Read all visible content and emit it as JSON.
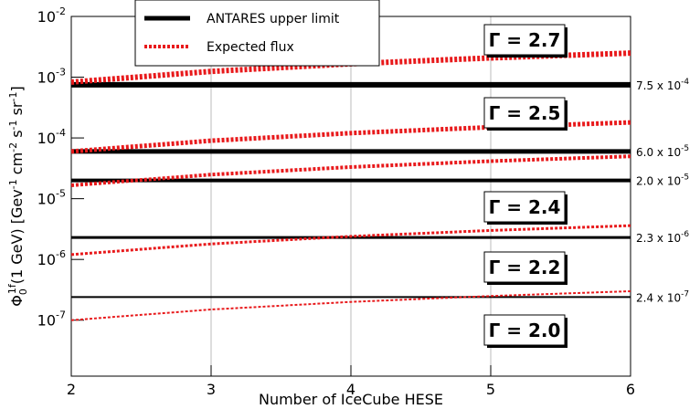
{
  "chart_data": {
    "type": "line",
    "x_label": "Number of IceCube HESE",
    "y_label": [
      "Φ",
      "0",
      "1f",
      "(1 GeV) [Gev",
      "-1",
      " cm",
      "-2",
      " s",
      "-1",
      " sr",
      "-1",
      "]"
    ],
    "xlim": [
      2,
      6
    ],
    "xticks": [
      2,
      3,
      4,
      5,
      6
    ],
    "ylim": [
      1.2e-08,
      0.01
    ],
    "log_y": true,
    "yticks": [
      {
        "value": 1e-07,
        "label": "10",
        "exp": "-7"
      },
      {
        "value": 1e-06,
        "label": "10",
        "exp": "-6"
      },
      {
        "value": 1e-05,
        "label": "10",
        "exp": "-5"
      },
      {
        "value": 0.0001,
        "label": "10",
        "exp": "-4"
      },
      {
        "value": 0.001,
        "label": "10",
        "exp": "-3"
      },
      {
        "value": 0.01,
        "label": "10",
        "exp": "-2"
      }
    ],
    "grid": true,
    "legend": "top-left",
    "x": [
      2,
      3,
      4,
      5,
      6
    ],
    "series": [
      {
        "name": "ANTARES upper limit",
        "color": "#000000",
        "values": [
          0.00075,
          6e-05,
          2e-05,
          2.3e-06,
          2.4e-07
        ],
        "value_labels": [
          {
            "label": "7.5 x 10",
            "exp": "-4"
          },
          {
            "label": "6.0 x 10",
            "exp": "-5"
          },
          {
            "label": "2.0 x 10",
            "exp": "-5"
          },
          {
            "label": "2.3 x 10",
            "exp": "-6"
          },
          {
            "label": "2.4 x 10",
            "exp": "-7"
          }
        ]
      },
      {
        "name": "Expected flux",
        "color": "#e8191b",
        "lines": [
          {
            "label": "Γ = 2.7",
            "values": [
              0.00083,
              0.001245,
              0.00166,
              0.002075,
              0.00249
            ]
          },
          {
            "label": "Γ = 2.5",
            "values": [
              6e-05,
              9e-05,
              0.00012,
              0.00015,
              0.00018
            ]
          },
          {
            "label": "Γ = 2.4",
            "values": [
              1.66e-05,
              2.49e-05,
              3.32e-05,
              4.15e-05,
              4.98e-05
            ]
          },
          {
            "label": "Γ = 2.2",
            "values": [
              1.2e-06,
              1.8e-06,
              2.4e-06,
              3e-06,
              3.6e-06
            ]
          },
          {
            "label": "Γ = 2.0",
            "values": [
              1e-07,
              1.5e-07,
              2e-07,
              2.5e-07,
              3e-07
            ]
          }
        ]
      }
    ]
  }
}
